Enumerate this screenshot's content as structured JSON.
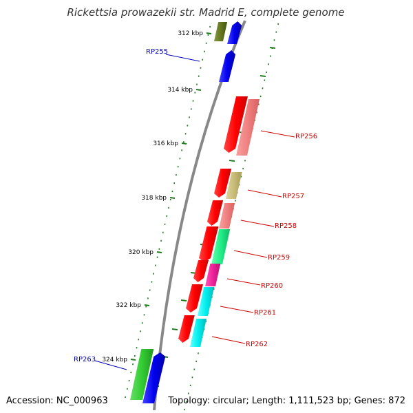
{
  "title": "Rickettsia prowazekii str. Madrid E, complete genome",
  "footer": {
    "accession": "Accession: NC_000963",
    "summary": "Topology: circular; Length: 1,111,523 bp; Genes: 872"
  },
  "ticks": [
    "312 kbp",
    "314 kbp",
    "316 kbp",
    "318 kbp",
    "320 kbp",
    "322 kbp",
    "324 kbp"
  ],
  "genes": [
    {
      "label": "RP255",
      "color": "#0000bb"
    },
    {
      "label": "RP256",
      "color": "#cc0000"
    },
    {
      "label": "RP257",
      "color": "#cc0000"
    },
    {
      "label": "RP258",
      "color": "#cc0000"
    },
    {
      "label": "RP259",
      "color": "#cc0000"
    },
    {
      "label": "RP260",
      "color": "#cc0000"
    },
    {
      "label": "RP261",
      "color": "#cc0000"
    },
    {
      "label": "RP262",
      "color": "#cc0000"
    },
    {
      "label": "RP263",
      "color": "#0000bb"
    }
  ],
  "colors": {
    "backbone": "#888888",
    "tick_dot": "#1f7a1f",
    "red": "#ff0000",
    "pink": "#f08080",
    "khaki": "#c8bc78",
    "spring_green": "#22ee88",
    "magenta": "#ee2299",
    "cyan": "#00eeee",
    "green": "#33cc33",
    "olive": "#667722",
    "blue": "#0000ee"
  }
}
